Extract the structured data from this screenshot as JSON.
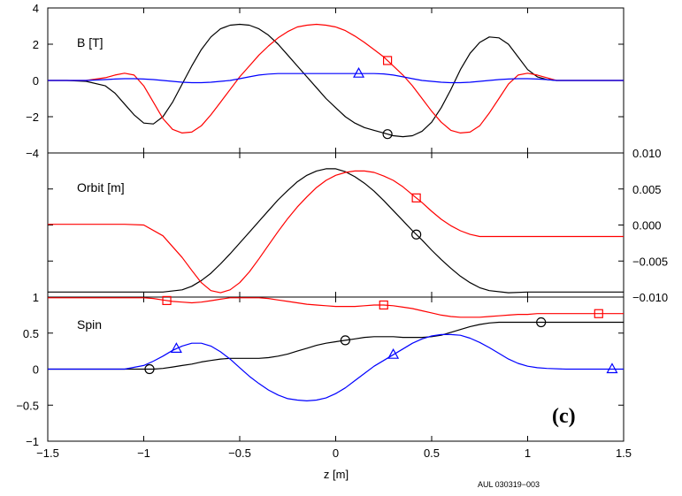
{
  "figure": {
    "xlabel": "z [m]",
    "xlim": [
      -1.5,
      1.5
    ],
    "xticks": [
      -1.5,
      -1,
      -0.5,
      0,
      0.5,
      1,
      1.5
    ],
    "xtick_labels": [
      "−1.5",
      "−1",
      "−0.5",
      "0",
      "0.5",
      "1",
      "1.5"
    ],
    "panel_tag": "(c)",
    "credit": "AUL 030319−003",
    "colors": {
      "black": "#000000",
      "red": "#ff0000",
      "blue": "#0000ff"
    }
  },
  "chart_data": [
    {
      "type": "line",
      "title": "B [T]",
      "ylim": [
        -4,
        4
      ],
      "yticks": [
        -4,
        -2,
        0,
        2,
        4
      ],
      "ytick_labels": [
        "−4",
        "−2",
        "0",
        "2",
        "4"
      ],
      "ytick_side": "left",
      "x": [
        -1.5,
        -1.4,
        -1.3,
        -1.2,
        -1.15,
        -1.1,
        -1.05,
        -1.0,
        -0.95,
        -0.9,
        -0.85,
        -0.8,
        -0.75,
        -0.7,
        -0.65,
        -0.6,
        -0.55,
        -0.5,
        -0.45,
        -0.4,
        -0.35,
        -0.3,
        -0.25,
        -0.2,
        -0.15,
        -0.1,
        -0.05,
        0.0,
        0.05,
        0.1,
        0.15,
        0.2,
        0.25,
        0.3,
        0.35,
        0.4,
        0.45,
        0.5,
        0.55,
        0.6,
        0.65,
        0.7,
        0.75,
        0.8,
        0.85,
        0.9,
        0.95,
        1.0,
        1.05,
        1.1,
        1.15,
        1.2,
        1.3,
        1.4,
        1.5
      ],
      "series": [
        {
          "color": "#000000",
          "marker": "circle",
          "marker_x": [
            0.27
          ],
          "values": [
            0,
            0,
            -0.05,
            -0.3,
            -0.7,
            -1.3,
            -1.9,
            -2.35,
            -2.4,
            -2.0,
            -1.2,
            -0.2,
            0.8,
            1.7,
            2.4,
            2.85,
            3.05,
            3.1,
            3.05,
            2.85,
            2.5,
            2.0,
            1.4,
            0.8,
            0.2,
            -0.4,
            -1.0,
            -1.5,
            -2.0,
            -2.35,
            -2.6,
            -2.75,
            -2.9,
            -3.05,
            -3.1,
            -3.05,
            -2.8,
            -2.3,
            -1.5,
            -0.5,
            0.6,
            1.5,
            2.1,
            2.4,
            2.35,
            2.0,
            1.3,
            0.6,
            0.2,
            0.05,
            0,
            0,
            0,
            0,
            0
          ]
        },
        {
          "color": "#ff0000",
          "marker": "square",
          "marker_x": [
            0.27
          ],
          "values": [
            0,
            0,
            0,
            0.15,
            0.3,
            0.4,
            0.3,
            -0.3,
            -1.2,
            -2.1,
            -2.7,
            -2.9,
            -2.85,
            -2.5,
            -1.9,
            -1.2,
            -0.5,
            0.2,
            0.8,
            1.4,
            1.9,
            2.35,
            2.7,
            2.95,
            3.05,
            3.1,
            3.05,
            2.95,
            2.75,
            2.45,
            2.1,
            1.7,
            1.3,
            0.8,
            0.3,
            -0.3,
            -1.0,
            -1.7,
            -2.3,
            -2.75,
            -2.9,
            -2.85,
            -2.5,
            -1.8,
            -1.0,
            -0.2,
            0.3,
            0.4,
            0.3,
            0.15,
            0,
            0,
            0,
            0,
            0
          ]
        },
        {
          "color": "#0000ff",
          "marker": "triangle",
          "marker_x": [
            0.12
          ],
          "values": [
            0,
            0,
            0,
            0.05,
            0.08,
            0.1,
            0.1,
            0.08,
            0.05,
            0.0,
            -0.05,
            -0.1,
            -0.12,
            -0.12,
            -0.1,
            -0.05,
            0.0,
            0.1,
            0.2,
            0.3,
            0.35,
            0.38,
            0.38,
            0.38,
            0.38,
            0.38,
            0.38,
            0.38,
            0.38,
            0.38,
            0.38,
            0.38,
            0.36,
            0.3,
            0.2,
            0.1,
            0.0,
            -0.05,
            -0.1,
            -0.12,
            -0.12,
            -0.1,
            -0.05,
            0.0,
            0.05,
            0.08,
            0.1,
            0.1,
            0.08,
            0.05,
            0,
            0,
            0,
            0,
            0
          ]
        }
      ]
    },
    {
      "type": "line",
      "title": "Orbit [m]",
      "ylim": [
        -0.01,
        0.01
      ],
      "yticks": [
        -0.01,
        -0.005,
        0,
        0.005,
        0.01
      ],
      "ytick_labels": [
        "−0.010",
        "−0.005",
        "0.000",
        "0.005",
        "0.010"
      ],
      "ytick_side": "right",
      "x": [
        -1.5,
        -1.4,
        -1.3,
        -1.2,
        -1.1,
        -1.0,
        -0.9,
        -0.8,
        -0.75,
        -0.7,
        -0.65,
        -0.6,
        -0.55,
        -0.5,
        -0.45,
        -0.4,
        -0.35,
        -0.3,
        -0.25,
        -0.2,
        -0.15,
        -0.1,
        -0.05,
        0.0,
        0.05,
        0.1,
        0.15,
        0.2,
        0.25,
        0.3,
        0.35,
        0.4,
        0.45,
        0.5,
        0.55,
        0.6,
        0.65,
        0.7,
        0.75,
        0.8,
        0.9,
        1.0,
        1.1,
        1.2,
        1.3,
        1.4,
        1.5
      ],
      "series": [
        {
          "color": "#000000",
          "marker": "circle",
          "marker_x": [
            0.42
          ],
          "values": [
            -0.0093,
            -0.0093,
            -0.0093,
            -0.0093,
            -0.0093,
            -0.0093,
            -0.0093,
            -0.009,
            -0.0085,
            -0.0077,
            -0.0067,
            -0.0054,
            -0.004,
            -0.0025,
            -0.001,
            0.0005,
            0.002,
            0.0035,
            0.0048,
            0.006,
            0.0069,
            0.0075,
            0.0078,
            0.0078,
            0.0074,
            0.0067,
            0.0058,
            0.0047,
            0.0034,
            0.002,
            0.0006,
            -0.0008,
            -0.0021,
            -0.0035,
            -0.0048,
            -0.006,
            -0.0071,
            -0.008,
            -0.0087,
            -0.0091,
            -0.0094,
            -0.0093,
            -0.0093,
            -0.0093,
            -0.0093,
            -0.0093,
            -0.0093
          ]
        },
        {
          "color": "#ff0000",
          "marker": "square",
          "marker_x": [
            0.42
          ],
          "values": [
            0.0001,
            0.0001,
            0.0001,
            0.0001,
            0.0001,
            0.0,
            -0.0015,
            -0.0045,
            -0.0063,
            -0.008,
            -0.0091,
            -0.0094,
            -0.009,
            -0.008,
            -0.0065,
            -0.0047,
            -0.0028,
            -0.0009,
            0.0009,
            0.0025,
            0.0039,
            0.0052,
            0.0062,
            0.0069,
            0.0073,
            0.0075,
            0.0075,
            0.0073,
            0.0068,
            0.0062,
            0.0053,
            0.0042,
            0.0031,
            0.0019,
            0.0008,
            -0.0001,
            -0.0008,
            -0.0013,
            -0.0016,
            -0.0016,
            -0.0016,
            -0.0016,
            -0.0016,
            -0.0016,
            -0.0016,
            -0.0016,
            -0.0016
          ]
        }
      ]
    },
    {
      "type": "line",
      "title": "Spin",
      "ylim": [
        -1,
        1
      ],
      "yticks": [
        -1,
        -0.5,
        0,
        0.5,
        1
      ],
      "ytick_labels": [
        "−1",
        "−0.5",
        "0",
        "0.5",
        "1"
      ],
      "ytick_side": "left",
      "x": [
        -1.5,
        -1.3,
        -1.1,
        -1.0,
        -0.95,
        -0.9,
        -0.85,
        -0.8,
        -0.75,
        -0.7,
        -0.65,
        -0.6,
        -0.55,
        -0.5,
        -0.45,
        -0.4,
        -0.35,
        -0.3,
        -0.25,
        -0.2,
        -0.15,
        -0.1,
        -0.05,
        0.0,
        0.05,
        0.1,
        0.15,
        0.2,
        0.25,
        0.3,
        0.35,
        0.4,
        0.45,
        0.5,
        0.55,
        0.6,
        0.65,
        0.7,
        0.75,
        0.8,
        0.85,
        0.9,
        0.95,
        1.0,
        1.05,
        1.1,
        1.2,
        1.3,
        1.4,
        1.5
      ],
      "series": [
        {
          "color": "#000000",
          "marker": "circle",
          "marker_x": [
            -0.97,
            0.05,
            1.07
          ],
          "values": [
            0,
            0,
            0,
            0,
            0.0,
            0.01,
            0.03,
            0.05,
            0.07,
            0.1,
            0.12,
            0.14,
            0.15,
            0.15,
            0.15,
            0.15,
            0.16,
            0.18,
            0.21,
            0.25,
            0.29,
            0.33,
            0.36,
            0.38,
            0.4,
            0.42,
            0.44,
            0.45,
            0.45,
            0.45,
            0.44,
            0.44,
            0.44,
            0.45,
            0.47,
            0.51,
            0.55,
            0.59,
            0.62,
            0.64,
            0.65,
            0.65,
            0.65,
            0.65,
            0.65,
            0.65,
            0.65,
            0.65,
            0.65,
            0.65
          ]
        },
        {
          "color": "#ff0000",
          "marker": "square",
          "marker_x": [
            -0.88,
            0.25,
            1.37
          ],
          "values": [
            0.99,
            0.99,
            0.99,
            0.99,
            0.98,
            0.96,
            0.94,
            0.93,
            0.92,
            0.93,
            0.95,
            0.97,
            0.99,
            0.99,
            0.99,
            0.99,
            0.98,
            0.96,
            0.94,
            0.92,
            0.9,
            0.89,
            0.88,
            0.87,
            0.87,
            0.87,
            0.88,
            0.89,
            0.89,
            0.88,
            0.86,
            0.84,
            0.81,
            0.78,
            0.75,
            0.73,
            0.72,
            0.72,
            0.72,
            0.73,
            0.74,
            0.75,
            0.76,
            0.76,
            0.77,
            0.77,
            0.77,
            0.77,
            0.77,
            0.77
          ]
        },
        {
          "color": "#0000ff",
          "marker": "triangle",
          "marker_x": [
            -0.83,
            0.3,
            1.44
          ],
          "values": [
            0,
            0,
            0,
            0.05,
            0.11,
            0.18,
            0.26,
            0.32,
            0.36,
            0.36,
            0.32,
            0.24,
            0.14,
            0.02,
            -0.1,
            -0.2,
            -0.29,
            -0.36,
            -0.41,
            -0.43,
            -0.44,
            -0.43,
            -0.4,
            -0.34,
            -0.26,
            -0.16,
            -0.06,
            0.04,
            0.12,
            0.2,
            0.28,
            0.36,
            0.42,
            0.46,
            0.48,
            0.48,
            0.47,
            0.43,
            0.37,
            0.3,
            0.22,
            0.14,
            0.08,
            0.04,
            0.02,
            0.01,
            0,
            0,
            0,
            0
          ]
        }
      ]
    }
  ]
}
